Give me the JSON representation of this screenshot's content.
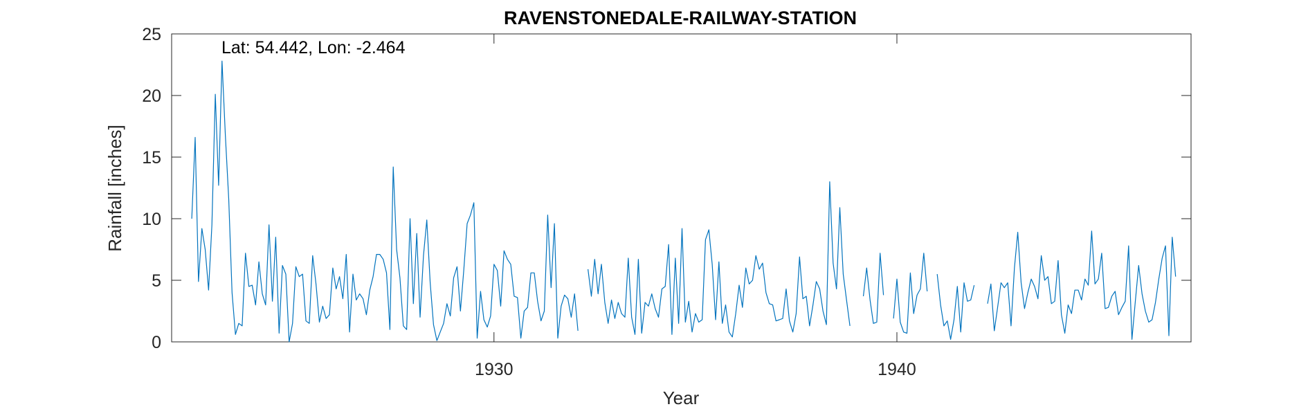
{
  "chart_data": {
    "type": "line",
    "title": "RAVENSTONEDALE-RAILWAY-STATION",
    "annotation": "Lat: 54.442, Lon: -2.464",
    "xlabel": "Year",
    "ylabel": "Rainfall [inches]",
    "xlim": [
      1922.0,
      1947.3
    ],
    "ylim": [
      0,
      25
    ],
    "xticks": [
      1930,
      1940
    ],
    "xtick_labels": [
      "1930",
      "1940"
    ],
    "yticks": [
      0,
      5,
      10,
      15,
      20,
      25
    ],
    "ytick_labels": [
      "0",
      "5",
      "10",
      "15",
      "20",
      "25"
    ],
    "grid": false,
    "line_color": "#0072BD",
    "start_year": 1922,
    "start_month": 7,
    "series": [
      {
        "values": [
          10.0,
          16.6,
          4.9,
          9.2,
          7.5,
          4.2,
          9.5,
          20.1,
          12.7,
          22.8,
          16.8,
          11.6,
          4.0,
          0.6,
          1.5,
          1.3,
          7.2,
          4.5,
          4.6,
          3.0,
          6.5,
          3.9,
          3.0,
          9.5,
          3.3,
          8.5,
          0.7,
          6.2,
          5.5,
          0.0,
          1.5,
          6.1,
          5.3,
          5.5,
          1.7,
          1.5,
          7.0,
          4.7,
          1.6,
          2.9,
          1.9,
          2.2,
          6.0,
          4.3,
          5.3,
          3.5,
          7.1,
          0.8,
          5.5,
          3.4,
          3.9,
          3.5,
          2.2,
          4.2,
          5.3,
          7.1,
          7.1,
          6.7,
          5.6,
          1.0,
          14.2,
          7.5,
          5.2,
          1.3,
          1.0,
          10.0,
          3.1,
          8.8,
          2.0,
          7.0,
          9.9,
          4.8,
          1.4,
          0.1,
          0.8,
          1.5,
          3.1,
          2.1,
          5.2,
          6.1,
          2.5,
          5.8,
          9.6,
          10.3,
          11.3,
          0.3,
          4.1,
          1.8,
          1.2,
          2.1,
          6.3,
          5.8,
          2.9,
          7.4,
          6.7,
          6.3,
          3.7,
          3.6,
          0.3,
          2.5,
          2.8,
          5.6,
          5.6,
          3.3,
          1.7,
          2.5,
          10.3,
          4.4,
          9.6,
          0.3,
          2.9,
          3.8,
          3.5,
          2.0,
          3.9,
          0.9,
          null,
          null,
          5.9,
          3.7,
          6.7,
          3.9,
          6.3,
          3.2,
          1.5,
          3.4,
          1.9,
          3.2,
          2.3,
          2.0,
          6.8,
          2.0,
          0.6,
          6.7,
          0.7,
          3.2,
          2.9,
          3.9,
          2.7,
          2.0,
          4.3,
          4.5,
          7.9,
          0.6,
          6.8,
          1.5,
          9.2,
          1.6,
          3.3,
          0.8,
          2.3,
          1.6,
          1.8,
          8.3,
          9.1,
          6.3,
          1.8,
          6.5,
          1.5,
          3.0,
          0.8,
          0.4,
          2.3,
          4.6,
          2.8,
          6.0,
          4.7,
          5.0,
          7.0,
          5.9,
          6.4,
          4.0,
          3.1,
          3.0,
          1.7,
          1.8,
          1.9,
          4.3,
          1.7,
          0.8,
          2.3,
          6.9,
          3.5,
          3.7,
          1.3,
          3.0,
          4.9,
          4.3,
          2.5,
          1.4,
          13.0,
          6.4,
          4.3,
          10.9,
          5.5,
          3.4,
          1.3,
          null,
          null,
          null,
          3.7,
          6.0,
          3.4,
          1.5,
          1.6,
          7.2,
          3.8,
          null,
          null,
          1.9,
          5.1,
          1.6,
          0.8,
          0.7,
          5.6,
          2.3,
          3.8,
          4.3,
          7.2,
          4.1,
          null,
          null,
          5.5,
          3.0,
          1.3,
          1.7,
          0.2,
          1.8,
          4.5,
          0.8,
          4.8,
          3.3,
          3.4,
          4.6,
          null,
          null,
          null,
          3.1,
          4.7,
          0.9,
          2.8,
          4.8,
          4.4,
          4.8,
          1.3,
          6.0,
          8.9,
          4.8,
          2.7,
          4.0,
          5.1,
          4.5,
          3.5,
          7.0,
          5.0,
          5.3,
          3.1,
          3.3,
          6.6,
          2.2,
          0.7,
          3.0,
          2.3,
          4.2,
          4.2,
          3.4,
          5.1,
          4.6,
          9.0,
          4.7,
          5.1,
          7.2,
          2.7,
          2.8,
          3.7,
          4.1,
          2.2,
          2.8,
          3.3,
          7.8,
          0.2,
          3.3,
          6.2,
          3.9,
          2.5,
          1.6,
          1.8,
          3.2,
          5.1,
          6.8,
          7.8,
          0.5,
          8.5,
          5.3
        ]
      }
    ]
  }
}
